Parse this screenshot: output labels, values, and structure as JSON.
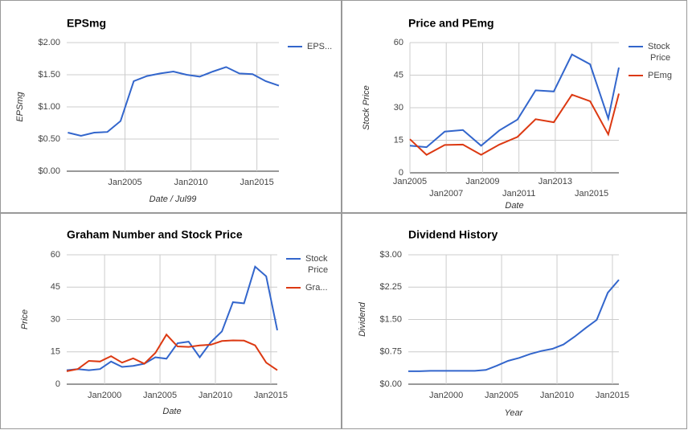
{
  "chart_data": [
    {
      "type": "line",
      "title": "EPSmg",
      "x_label": "Date / Jul99",
      "y_label": "EPSmg",
      "grid": true,
      "legend": "right",
      "x": [
        "2000-09",
        "2001-09",
        "2002-09",
        "2003-09",
        "2004-09",
        "2005-09",
        "2006-09",
        "2007-09",
        "2008-09",
        "2009-09",
        "2010-09",
        "2011-09",
        "2012-09",
        "2013-09",
        "2014-09",
        "2015-09",
        "2016-09"
      ],
      "xlim": [
        "2000-08",
        "2016-09"
      ],
      "xticks": [
        {
          "value": "2005-01",
          "label": "Jan2005"
        },
        {
          "value": "2010-01",
          "label": "Jan2010"
        },
        {
          "value": "2015-01",
          "label": "Jan2015"
        }
      ],
      "ylim": [
        0,
        2
      ],
      "yticks": [
        {
          "value": 0,
          "label": "$0.00"
        },
        {
          "value": 0.5,
          "label": "$0.50"
        },
        {
          "value": 1,
          "label": "$1.00"
        },
        {
          "value": 1.5,
          "label": "$1.50"
        },
        {
          "value": 2,
          "label": "$2.00"
        }
      ],
      "series": [
        {
          "name": "EPS...",
          "color": "#3366cc",
          "values": [
            0.6,
            0.55,
            0.6,
            0.61,
            0.78,
            1.4,
            1.48,
            1.52,
            1.55,
            1.5,
            1.47,
            1.55,
            1.62,
            1.52,
            1.51,
            1.4,
            1.33
          ]
        }
      ]
    },
    {
      "type": "line",
      "title": "Price and PEmg",
      "x_label": "Date",
      "y_label": "Stock Price",
      "grid": true,
      "legend": "right",
      "x": [
        "2005-01",
        "2005-12",
        "2006-12",
        "2007-12",
        "2008-12",
        "2009-12",
        "2010-12",
        "2011-12",
        "2012-12",
        "2013-12",
        "2014-12",
        "2015-12",
        "2016-07"
      ],
      "xlim": [
        "2005-01",
        "2016-07"
      ],
      "xticks": [
        {
          "value": "2005-01",
          "label": "Jan2005"
        },
        {
          "value": "2007-01",
          "label": "Jan2007"
        },
        {
          "value": "2009-01",
          "label": "Jan2009"
        },
        {
          "value": "2011-01",
          "label": "Jan2011"
        },
        {
          "value": "2013-01",
          "label": "Jan2013"
        },
        {
          "value": "2015-01",
          "label": "Jan2015"
        }
      ],
      "ylim": [
        0,
        60
      ],
      "yticks": [
        0,
        15,
        30,
        45,
        60
      ],
      "series": [
        {
          "name": "Stock Price",
          "color": "#3366cc",
          "values": [
            12.5,
            11.8,
            19,
            19.7,
            12.5,
            19.5,
            24.5,
            38,
            37.5,
            54.5,
            50,
            25,
            48.5
          ]
        },
        {
          "name": "PEmg",
          "color": "#dc3912",
          "values": [
            15.5,
            8.3,
            12.8,
            13,
            8.3,
            13,
            16.5,
            24.7,
            23.3,
            36,
            33,
            17.7,
            36.5
          ]
        }
      ]
    },
    {
      "type": "line",
      "title": "Graham Number and Stock Price",
      "x_label": "Date",
      "y_label": "Price",
      "grid": true,
      "legend": "right",
      "x": [
        "1996-08",
        "1997-08",
        "1998-08",
        "1999-08",
        "2000-08",
        "2001-08",
        "2002-08",
        "2003-08",
        "2004-08",
        "2005-08",
        "2006-08",
        "2007-08",
        "2008-08",
        "2009-08",
        "2010-08",
        "2011-08",
        "2012-08",
        "2013-08",
        "2014-08",
        "2015-08"
      ],
      "xlim": [
        "1996-08",
        "2015-08"
      ],
      "xticks": [
        {
          "value": "2000-01",
          "label": "Jan2000"
        },
        {
          "value": "2005-01",
          "label": "Jan2005"
        },
        {
          "value": "2010-01",
          "label": "Jan2010"
        },
        {
          "value": "2015-01",
          "label": "Jan2015"
        }
      ],
      "ylim": [
        0,
        60
      ],
      "yticks": [
        0,
        15,
        30,
        45,
        60
      ],
      "series": [
        {
          "name": "Stock Price",
          "color": "#3366cc",
          "values": [
            6.5,
            7,
            6.5,
            7,
            10.5,
            8,
            8.5,
            9.5,
            12.5,
            11.8,
            19,
            19.7,
            12.5,
            19.5,
            24.5,
            38,
            37.5,
            54.5,
            50,
            25
          ]
        },
        {
          "name": "Gra...",
          "color": "#dc3912",
          "values": [
            6,
            7,
            10.8,
            10.5,
            13,
            10,
            12,
            9.5,
            14.5,
            23,
            17.5,
            17.3,
            18,
            18.3,
            20,
            20.3,
            20.2,
            18,
            10,
            6.5
          ]
        }
      ]
    },
    {
      "type": "line",
      "title": "Dividend History",
      "x_label": "Year",
      "y_label": "Dividend",
      "grid": true,
      "x": [
        "1996-08",
        "1997-08",
        "1998-08",
        "1999-08",
        "2000-08",
        "2001-08",
        "2002-08",
        "2003-08",
        "2004-08",
        "2005-08",
        "2006-08",
        "2007-08",
        "2008-08",
        "2009-08",
        "2010-08",
        "2011-08",
        "2012-08",
        "2013-08",
        "2014-08",
        "2015-08"
      ],
      "xlim": [
        "1996-08",
        "2015-08"
      ],
      "xticks": [
        {
          "value": "2000-01",
          "label": "Jan2000"
        },
        {
          "value": "2005-01",
          "label": "Jan2005"
        },
        {
          "value": "2010-01",
          "label": "Jan2010"
        },
        {
          "value": "2015-01",
          "label": "Jan2015"
        }
      ],
      "ylim": [
        0,
        3
      ],
      "yticks": [
        {
          "value": 0,
          "label": "$0.00"
        },
        {
          "value": 0.75,
          "label": "$0.75"
        },
        {
          "value": 1.5,
          "label": "$1.50"
        },
        {
          "value": 2.25,
          "label": "$2.25"
        },
        {
          "value": 3,
          "label": "$3.00"
        }
      ],
      "series": [
        {
          "color": "#3366cc",
          "values": [
            0.3,
            0.3,
            0.31,
            0.31,
            0.31,
            0.31,
            0.31,
            0.33,
            0.43,
            0.54,
            0.61,
            0.7,
            0.77,
            0.82,
            0.92,
            1.1,
            1.3,
            1.49,
            2.12,
            2.42
          ]
        }
      ]
    }
  ]
}
